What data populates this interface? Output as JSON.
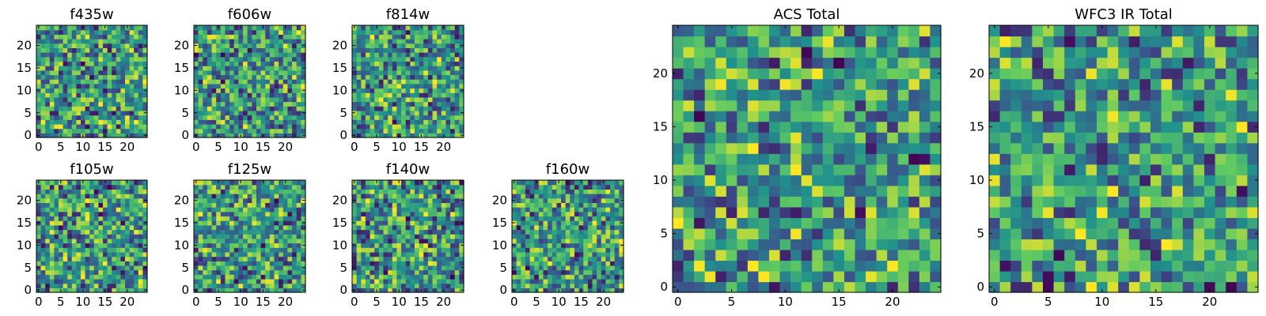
{
  "chart_data": [
    {
      "type": "heatmap",
      "title": "f435w",
      "xlim": [
        -0.5,
        24.5
      ],
      "ylim": [
        -0.5,
        24.5
      ],
      "xticks": [
        0,
        5,
        10,
        15,
        20
      ],
      "yticks": [
        0,
        5,
        10,
        15,
        20
      ],
      "grid": false,
      "colormap": "viridis",
      "seed": 11
    },
    {
      "type": "heatmap",
      "title": "f606w",
      "xlim": [
        -0.5,
        24.5
      ],
      "ylim": [
        -0.5,
        24.5
      ],
      "xticks": [
        0,
        5,
        10,
        15,
        20
      ],
      "yticks": [
        0,
        5,
        10,
        15,
        20
      ],
      "grid": false,
      "colormap": "viridis",
      "seed": 23
    },
    {
      "type": "heatmap",
      "title": "f814w",
      "xlim": [
        -0.5,
        24.5
      ],
      "ylim": [
        -0.5,
        24.5
      ],
      "xticks": [
        0,
        5,
        10,
        15,
        20
      ],
      "yticks": [
        0,
        5,
        10,
        15,
        20
      ],
      "grid": false,
      "colormap": "viridis",
      "seed": 37
    },
    {
      "type": "heatmap",
      "title": "f105w",
      "xlim": [
        -0.5,
        24.5
      ],
      "ylim": [
        -0.5,
        24.5
      ],
      "xticks": [
        0,
        5,
        10,
        15,
        20
      ],
      "yticks": [
        0,
        5,
        10,
        15,
        20
      ],
      "grid": false,
      "colormap": "viridis",
      "seed": 41
    },
    {
      "type": "heatmap",
      "title": "f125w",
      "xlim": [
        -0.5,
        24.5
      ],
      "ylim": [
        -0.5,
        24.5
      ],
      "xticks": [
        0,
        5,
        10,
        15,
        20
      ],
      "yticks": [
        0,
        5,
        10,
        15,
        20
      ],
      "grid": false,
      "colormap": "viridis",
      "seed": 53
    },
    {
      "type": "heatmap",
      "title": "f140w",
      "xlim": [
        -0.5,
        24.5
      ],
      "ylim": [
        -0.5,
        24.5
      ],
      "xticks": [
        0,
        5,
        10,
        15,
        20
      ],
      "yticks": [
        0,
        5,
        10,
        15,
        20
      ],
      "grid": false,
      "colormap": "viridis",
      "seed": 67
    },
    {
      "type": "heatmap",
      "title": "f160w",
      "xlim": [
        -0.5,
        24.5
      ],
      "ylim": [
        -0.5,
        24.5
      ],
      "xticks": [
        0,
        5,
        10,
        15,
        20
      ],
      "yticks": [
        0,
        5,
        10,
        15,
        20
      ],
      "grid": false,
      "colormap": "viridis",
      "seed": 79
    },
    {
      "type": "heatmap",
      "title": "ACS Total",
      "xlim": [
        -0.5,
        24.5
      ],
      "ylim": [
        -0.5,
        24.5
      ],
      "xticks": [
        0,
        5,
        10,
        15,
        20
      ],
      "yticks": [
        0,
        5,
        10,
        15,
        20
      ],
      "grid": false,
      "colormap": "viridis",
      "seed": 97
    },
    {
      "type": "heatmap",
      "title": "WFC3 IR Total",
      "xlim": [
        -0.5,
        24.5
      ],
      "ylim": [
        -0.5,
        24.5
      ],
      "xticks": [
        0,
        5,
        10,
        15,
        20
      ],
      "yticks": [
        0,
        5,
        10,
        15,
        20
      ],
      "grid": false,
      "colormap": "viridis",
      "seed": 113
    }
  ]
}
